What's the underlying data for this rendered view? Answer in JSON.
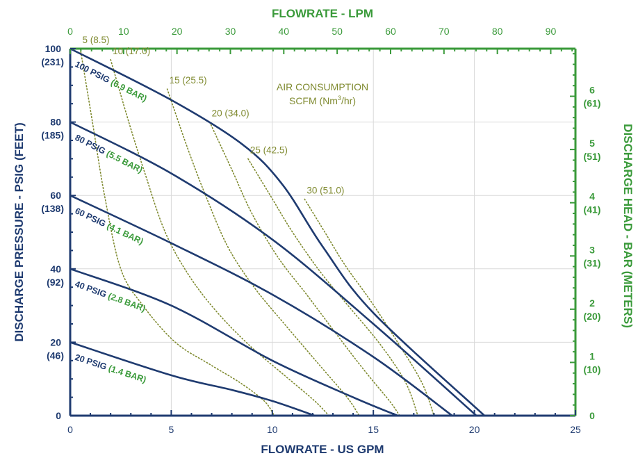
{
  "colors": {
    "primary_axis": "#1f3b70",
    "secondary_axis": "#3a9a3a",
    "air_consumption": "#7f8a2f",
    "grid": "#d9d9d9"
  },
  "chart_data": {
    "type": "line",
    "top_axis_title": "FLOWRATE - LPM",
    "xlabel": "FLOWRATE - US GPM",
    "ylabel": "DISCHARGE PRESSURE - PSIG (FEET)",
    "right_axis_title": "DISCHARGE HEAD - BAR (METERS)",
    "air_label_line1": "AIR CONSUMPTION",
    "air_label_line2_prefix": "SCFM (Nm",
    "air_label_line2_sup": "3",
    "air_label_line2_suffix": "/hr)",
    "xlim": [
      0,
      25
    ],
    "ylim": [
      0,
      100
    ],
    "x_ticks": [
      "0",
      "5",
      "10",
      "15",
      "20",
      "25"
    ],
    "lpm_ticks": [
      "0",
      "10",
      "20",
      "30",
      "40",
      "50",
      "60",
      "70",
      "80",
      "90"
    ],
    "y_ticks": [
      {
        "value": 0,
        "label": "0",
        "sub": ""
      },
      {
        "value": 20,
        "label": "20",
        "sub": "(46)"
      },
      {
        "value": 40,
        "label": "40",
        "sub": "(92)"
      },
      {
        "value": 60,
        "label": "60",
        "sub": "(138)"
      },
      {
        "value": 80,
        "label": "80",
        "sub": "(185)"
      },
      {
        "value": 100,
        "label": "100",
        "sub": "(231)"
      }
    ],
    "bar_ticks": [
      {
        "label": "0",
        "sub": ""
      },
      {
        "label": "1",
        "sub": "(10)"
      },
      {
        "label": "2",
        "sub": "(20)"
      },
      {
        "label": "3",
        "sub": "(31)"
      },
      {
        "label": "4",
        "sub": "(41)"
      },
      {
        "label": "5",
        "sub": "(51)"
      },
      {
        "label": "6",
        "sub": "(61)"
      }
    ],
    "grid": true,
    "series": [
      {
        "name_psig": "100 PSIG ",
        "name_bar": "(6.9 BAR)",
        "x": [
          0,
          5,
          8.5,
          10.5,
          12.5,
          15,
          20.5
        ],
        "y": [
          100,
          86,
          74,
          63,
          46,
          28,
          0
        ]
      },
      {
        "name_psig": "80 PSIG ",
        "name_bar": "(5.5 BAR)",
        "x": [
          0,
          5,
          10,
          15,
          20.1
        ],
        "y": [
          80,
          66,
          48,
          25,
          0
        ]
      },
      {
        "name_psig": "60 PSIG ",
        "name_bar": "(4.1 BAR)",
        "x": [
          0,
          5,
          10,
          15,
          18.9
        ],
        "y": [
          60,
          47,
          33,
          16,
          0
        ]
      },
      {
        "name_psig": "40 PSIG ",
        "name_bar": "(2.8 BAR)",
        "x": [
          0,
          5,
          10,
          14,
          16.2
        ],
        "y": [
          40,
          30,
          15,
          5,
          0
        ]
      },
      {
        "name_psig": "20 PSIG ",
        "name_bar": "(1.4 BAR)",
        "x": [
          0,
          5,
          8,
          10,
          12.1
        ],
        "y": [
          20,
          11,
          7,
          4,
          0
        ]
      }
    ],
    "air_consumption": [
      {
        "label": "5 (8.5)",
        "x": [
          0.5,
          1.1,
          1.7,
          2.5,
          3.6,
          5.2,
          6.9,
          8.4,
          9.6,
          10.1
        ],
        "y": [
          100,
          80,
          60,
          40,
          30,
          20,
          14,
          9,
          4,
          0
        ]
      },
      {
        "label": "10 (17.0)",
        "x": [
          2.0,
          2.9,
          3.7,
          4.7,
          5.9,
          7.3,
          8.9,
          10.6,
          12.1,
          12.8
        ],
        "y": [
          97,
          80,
          66,
          50,
          38,
          28,
          19,
          11,
          4,
          0
        ]
      },
      {
        "label": "15 (25.5)",
        "x": [
          4.8,
          5.8,
          6.7,
          7.8,
          9.1,
          10.6,
          12.3,
          13.7,
          14.3
        ],
        "y": [
          89,
          73,
          60,
          46,
          35,
          25,
          14,
          5,
          0
        ]
      },
      {
        "label": "20 (34.0)",
        "x": [
          6.9,
          8.0,
          9.0,
          10.3,
          11.7,
          13.2,
          14.6,
          15.8,
          16.3
        ],
        "y": [
          80,
          67,
          55,
          43,
          33,
          22,
          12,
          4,
          0
        ]
      },
      {
        "label": "25 (42.5)",
        "x": [
          8.8,
          9.9,
          11.0,
          12.4,
          13.9,
          15.4,
          16.6,
          17.2
        ],
        "y": [
          70,
          60,
          50,
          39,
          29,
          19,
          9,
          0
        ]
      },
      {
        "label": "30 (51.0)",
        "x": [
          11.6,
          12.6,
          13.6,
          14.9,
          16.2,
          17.4,
          18.0
        ],
        "y": [
          59,
          50,
          41,
          31,
          20,
          9,
          0
        ]
      }
    ]
  }
}
